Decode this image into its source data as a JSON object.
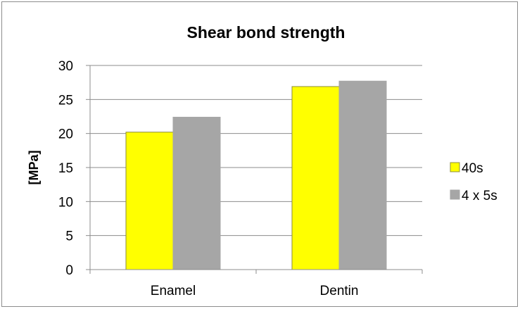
{
  "chart_data": {
    "type": "bar",
    "title": "Shear bond strength",
    "xlabel": "",
    "ylabel": "[MPa]",
    "categories": [
      "Enamel",
      "Dentin"
    ],
    "series": [
      {
        "name": "40s",
        "values": [
          20.2,
          26.9
        ],
        "color": "#FFFF00",
        "stroke": "#8c8c3c"
      },
      {
        "name": "4 x 5s",
        "values": [
          22.4,
          27.7
        ],
        "color": "#A6A6A6",
        "stroke": "#a6a6a6"
      }
    ],
    "ylim": [
      0,
      30
    ],
    "yticks": [
      0,
      5,
      10,
      15,
      20,
      25,
      30
    ],
    "grid": true,
    "legend_position": "right"
  }
}
